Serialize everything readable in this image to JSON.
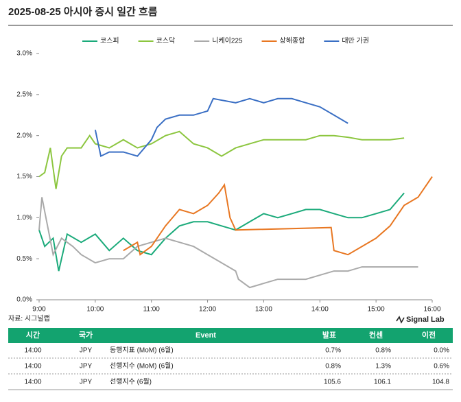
{
  "title": "2025-08-25 아시아 증시 일간 흐름",
  "chart_data": {
    "type": "line",
    "xlim": [
      9,
      16
    ],
    "xticks": [
      {
        "value": 9,
        "label": "9:00"
      },
      {
        "value": 10,
        "label": "10:00"
      },
      {
        "value": 11,
        "label": "11:00"
      },
      {
        "value": 12,
        "label": "12:00"
      },
      {
        "value": 13,
        "label": "13:00"
      },
      {
        "value": 14,
        "label": "14:00"
      },
      {
        "value": 15,
        "label": "15:00"
      },
      {
        "value": 16,
        "label": "16:00"
      }
    ],
    "ylim": [
      0,
      3
    ],
    "yticks": [
      {
        "value": 0,
        "label": "0.0%"
      },
      {
        "value": 0.5,
        "label": "0.5%"
      },
      {
        "value": 1,
        "label": "1.0%"
      },
      {
        "value": 1.5,
        "label": "1.5%"
      },
      {
        "value": 2,
        "label": "2.0%"
      },
      {
        "value": 2.5,
        "label": "2.5%"
      },
      {
        "value": 3,
        "label": "3.0%"
      }
    ],
    "legend": "top",
    "series": [
      {
        "name": "코스피",
        "color": "#1aaa7a",
        "x": [
          9,
          9.1,
          9.25,
          9.35,
          9.5,
          9.75,
          10,
          10.25,
          10.5,
          10.75,
          11,
          11.25,
          11.5,
          11.75,
          12,
          12.25,
          12.5,
          12.75,
          13,
          13.25,
          13.5,
          13.75,
          14,
          14.25,
          14.5,
          14.75,
          15,
          15.25,
          15.5
        ],
        "values": [
          0.85,
          0.65,
          0.75,
          0.35,
          0.8,
          0.7,
          0.8,
          0.6,
          0.75,
          0.6,
          0.55,
          0.75,
          0.9,
          0.95,
          0.95,
          0.9,
          0.85,
          0.95,
          1.05,
          1,
          1.05,
          1.1,
          1.1,
          1.05,
          1,
          1,
          1.05,
          1.1,
          1.3
        ]
      },
      {
        "name": "코스닥",
        "color": "#8cc63f",
        "x": [
          9,
          9.1,
          9.2,
          9.3,
          9.4,
          9.5,
          9.75,
          9.9,
          10,
          10.25,
          10.5,
          10.75,
          11,
          11.25,
          11.5,
          11.75,
          12,
          12.25,
          12.5,
          12.75,
          13,
          13.25,
          13.5,
          13.75,
          14,
          14.25,
          14.5,
          14.75,
          15,
          15.25,
          15.5
        ],
        "values": [
          1.5,
          1.55,
          1.85,
          1.35,
          1.75,
          1.85,
          1.85,
          2,
          1.9,
          1.85,
          1.95,
          1.85,
          1.9,
          2,
          2.05,
          1.9,
          1.85,
          1.75,
          1.85,
          1.9,
          1.95,
          1.95,
          1.95,
          1.95,
          2,
          2,
          1.98,
          1.95,
          1.95,
          1.95,
          1.97
        ]
      },
      {
        "name": "니케이225",
        "color": "#aaaaaa",
        "x": [
          9,
          9.05,
          9.15,
          9.25,
          9.4,
          9.6,
          9.75,
          10,
          10.25,
          10.5,
          10.75,
          11,
          11.25,
          11.5,
          11.75,
          12,
          12.25,
          12.5,
          12.55,
          12.75,
          13,
          13.25,
          13.5,
          13.75,
          14,
          14.25,
          14.5,
          14.75,
          15,
          15.25,
          15.5,
          15.75
        ],
        "values": [
          0.85,
          1.25,
          0.9,
          0.55,
          0.75,
          0.65,
          0.55,
          0.45,
          0.5,
          0.5,
          0.65,
          0.7,
          0.75,
          0.7,
          0.65,
          0.55,
          0.45,
          0.35,
          0.25,
          0.15,
          0.2,
          0.25,
          0.25,
          0.25,
          0.3,
          0.35,
          0.35,
          0.4,
          0.4,
          0.4,
          0.4,
          0.4
        ]
      },
      {
        "name": "상해종합",
        "color": "#e87722",
        "x": [
          10.5,
          10.75,
          10.8,
          11,
          11.25,
          11.5,
          11.75,
          12,
          12.2,
          12.3,
          12.4,
          12.5,
          14.2,
          14.25,
          14.5,
          14.75,
          15,
          15.25,
          15.5,
          15.75,
          16
        ],
        "values": [
          0.6,
          0.7,
          0.55,
          0.65,
          0.9,
          1.1,
          1.05,
          1.15,
          1.3,
          1.4,
          1,
          0.85,
          0.88,
          0.6,
          0.55,
          0.65,
          0.75,
          0.9,
          1.15,
          1.25,
          1.5
        ]
      },
      {
        "name": "대만 가권",
        "color": "#3a6fc4",
        "x": [
          10,
          10.1,
          10.25,
          10.5,
          10.75,
          11,
          11.1,
          11.25,
          11.5,
          11.75,
          12,
          12.1,
          12.5,
          12.75,
          13,
          13.25,
          13.5,
          13.75,
          14,
          14.25,
          14.5
        ],
        "values": [
          2.07,
          1.75,
          1.8,
          1.8,
          1.75,
          1.95,
          2.1,
          2.2,
          2.25,
          2.25,
          2.3,
          2.45,
          2.4,
          2.45,
          2.4,
          2.45,
          2.45,
          2.4,
          2.35,
          2.25,
          2.15
        ]
      }
    ]
  },
  "source": "자료: 시그널랩",
  "logo": "Signal Lab",
  "table": {
    "header": [
      "시간",
      "국가",
      "Event",
      "발표",
      "컨센",
      "이전"
    ],
    "rows": [
      [
        "14:00",
        "JPY",
        "동행지표 (MoM) (6월)",
        "0.7%",
        "0.8%",
        "0.0%"
      ],
      [
        "14:00",
        "JPY",
        "선행지수 (MoM) (6월)",
        "0.8%",
        "1.3%",
        "0.6%"
      ],
      [
        "14:00",
        "JPY",
        "선행지수 (6월)",
        "105.6",
        "106.1",
        "104.8"
      ]
    ]
  }
}
